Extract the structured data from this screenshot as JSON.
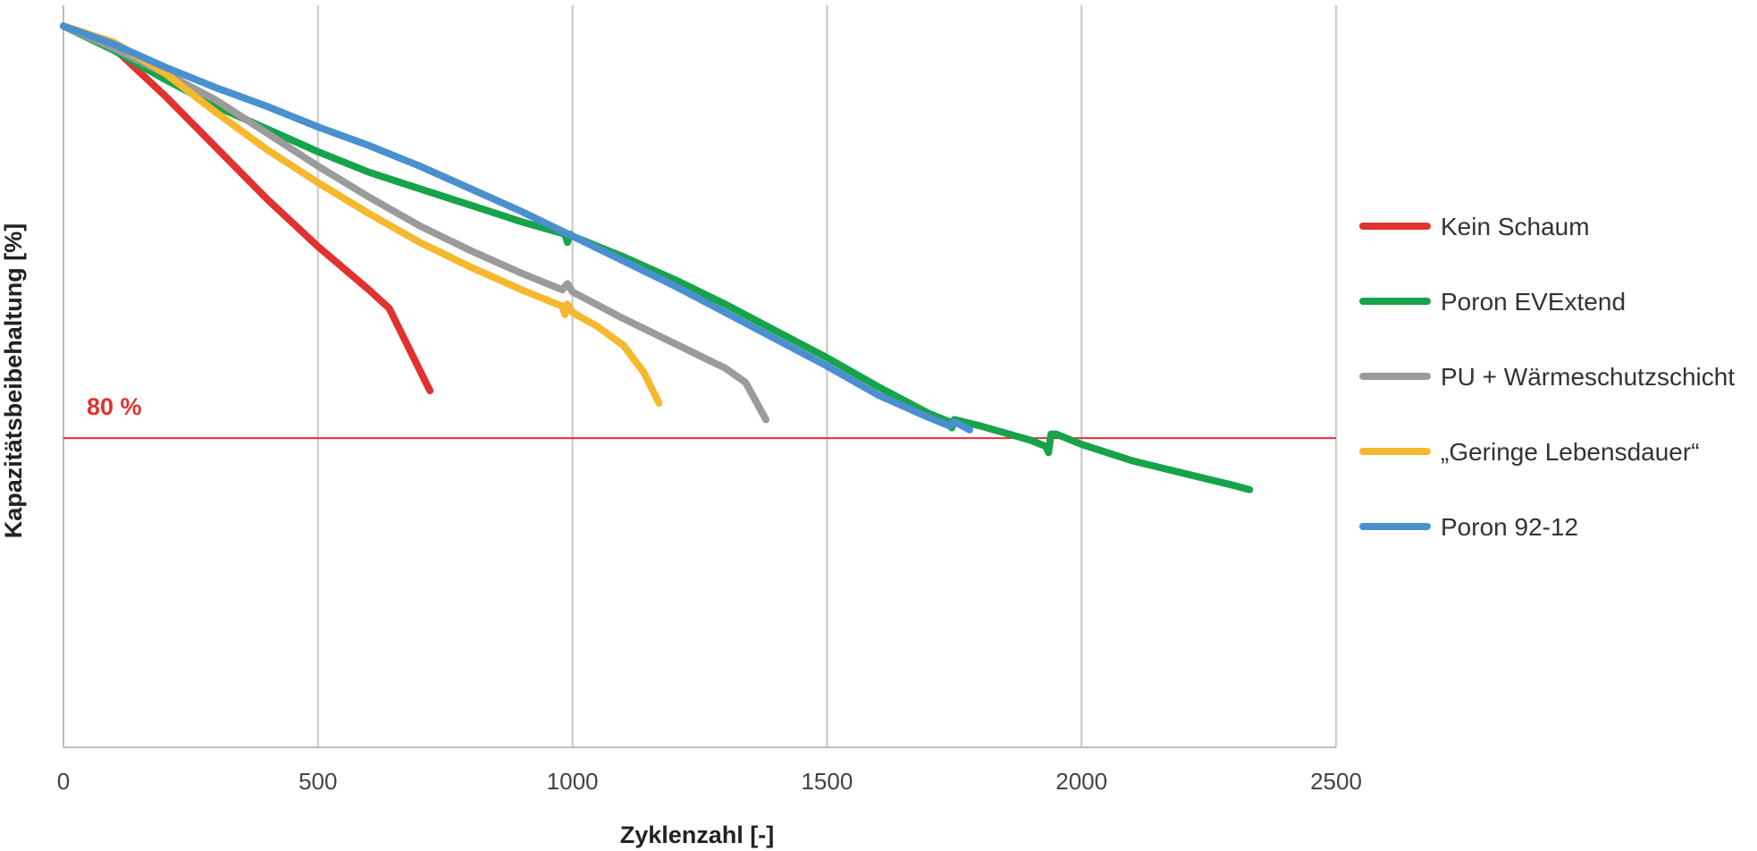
{
  "chart_data": {
    "type": "line",
    "title": "",
    "xlabel": "Zyklenzahl [-]",
    "ylabel": "Kapazitätsbeibehaltung [%]",
    "xlim": [
      0,
      2500
    ],
    "ylim": [
      65,
      101
    ],
    "x_ticks": [
      "0",
      "500",
      "1000",
      "1500",
      "2000",
      "2500"
    ],
    "grid": "vertical",
    "legend_position": "right",
    "reference_line": {
      "value": 80,
      "label": "80 %",
      "color": "#e2312f"
    },
    "series": [
      {
        "name": "Kein Schaum",
        "color": "#e2312f",
        "x": [
          0,
          100,
          200,
          300,
          400,
          500,
          600,
          640,
          660,
          680,
          700,
          720
        ],
        "y": [
          100,
          98.9,
          96.6,
          94.1,
          91.6,
          89.3,
          87.2,
          86.3,
          85.3,
          84.3,
          83.3,
          82.3
        ]
      },
      {
        "name": "Poron EVExtend",
        "color": "#17a34a",
        "x": [
          0,
          100,
          200,
          300,
          400,
          500,
          600,
          700,
          800,
          900,
          985,
          990,
          995,
          1000,
          1100,
          1200,
          1300,
          1400,
          1500,
          1600,
          1700,
          1740,
          1745,
          1750,
          1800,
          1900,
          1930,
          1935,
          1940,
          1950,
          2000,
          2050,
          2100,
          2200,
          2300,
          2330
        ],
        "y": [
          100,
          98.8,
          97.4,
          96.1,
          95,
          93.9,
          92.9,
          92.1,
          91.3,
          90.5,
          89.9,
          89.5,
          89.9,
          89.8,
          88.8,
          87.7,
          86.5,
          85.2,
          83.9,
          82.5,
          81.2,
          80.8,
          80.5,
          80.9,
          80.6,
          79.9,
          79.6,
          79.3,
          80.2,
          80.2,
          79.7,
          79.3,
          78.9,
          78.3,
          77.7,
          77.5
        ]
      },
      {
        "name": "PU + Wärmeschutzschicht",
        "color": "#9b9b9b",
        "x": [
          0,
          100,
          200,
          300,
          400,
          500,
          600,
          700,
          800,
          900,
          980,
          990,
          1000,
          1100,
          1200,
          1300,
          1340,
          1360,
          1380
        ],
        "y": [
          100,
          98.9,
          97.7,
          96.4,
          94.8,
          93.2,
          91.7,
          90.3,
          89.1,
          88,
          87.2,
          87.5,
          87.1,
          85.8,
          84.6,
          83.4,
          82.7,
          81.8,
          80.9
        ]
      },
      {
        "name": "„Geringe Lebensdauer“",
        "color": "#f5b82e",
        "x": [
          0,
          100,
          200,
          300,
          400,
          500,
          600,
          700,
          800,
          900,
          980,
          985,
          990,
          1000,
          1050,
          1100,
          1140,
          1170
        ],
        "y": [
          100,
          99.2,
          97.7,
          95.8,
          94,
          92.4,
          90.9,
          89.5,
          88.3,
          87.2,
          86.4,
          86,
          86.5,
          86.1,
          85.4,
          84.5,
          83.2,
          81.7
        ]
      },
      {
        "name": "Poron 92-12",
        "color": "#4a90cf",
        "x": [
          0,
          100,
          200,
          300,
          400,
          500,
          600,
          700,
          800,
          900,
          1000,
          1100,
          1200,
          1300,
          1400,
          1500,
          1600,
          1700,
          1740,
          1750,
          1780
        ],
        "y": [
          100,
          99.1,
          98,
          97,
          96.1,
          95.1,
          94.2,
          93.2,
          92.1,
          91,
          89.8,
          88.6,
          87.4,
          86.1,
          84.8,
          83.5,
          82.1,
          81,
          80.6,
          80.8,
          80.4
        ]
      }
    ]
  }
}
